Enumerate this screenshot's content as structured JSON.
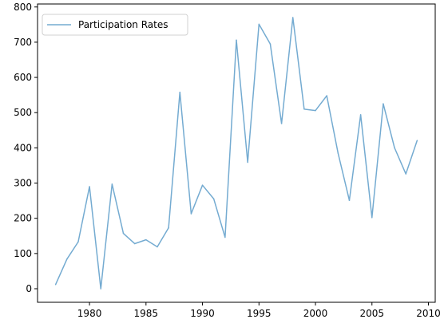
{
  "chart_data": {
    "type": "line",
    "title": "",
    "xlabel": "",
    "ylabel": "",
    "xlim": [
      1975.4,
      2010.6
    ],
    "ylim": [
      -38.5,
      808.5
    ],
    "x_ticks": [
      1980,
      1985,
      1990,
      1995,
      2000,
      2005,
      2010
    ],
    "y_ticks": [
      0,
      100,
      200,
      300,
      400,
      500,
      600,
      700,
      800
    ],
    "grid": false,
    "legend": {
      "position": "upper left"
    },
    "series": [
      {
        "name": "Participation Rates",
        "color": "#74abd1",
        "x": [
          1977,
          1978,
          1979,
          1980,
          1981,
          1982,
          1983,
          1984,
          1985,
          1986,
          1987,
          1988,
          1989,
          1990,
          1991,
          1992,
          1993,
          1994,
          1995,
          1996,
          1997,
          1998,
          1999,
          2000,
          2001,
          2002,
          2003,
          2004,
          2005,
          2006,
          2007,
          2008,
          2009
        ],
        "y": [
          12,
          84,
          133,
          290,
          0,
          297,
          157,
          128,
          139,
          119,
          173,
          558,
          213,
          294,
          255,
          146,
          706,
          359,
          751,
          695,
          469,
          770,
          510,
          506,
          548,
          385,
          251,
          494,
          202,
          525,
          400,
          326,
          421
        ]
      }
    ]
  }
}
